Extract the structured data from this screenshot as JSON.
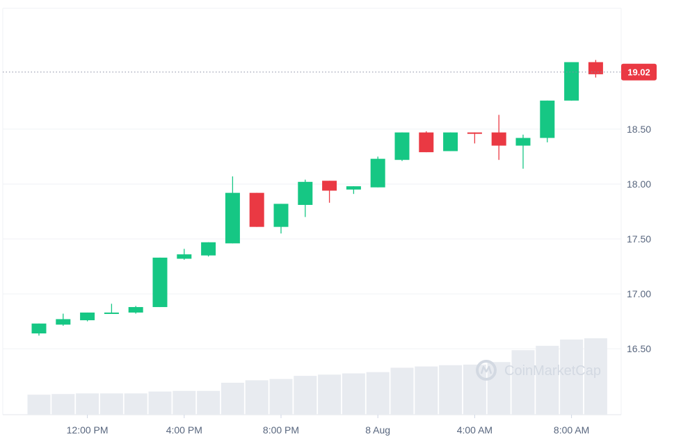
{
  "chart_data": {
    "type": "candlestick",
    "title": "",
    "xlabel": "",
    "ylabel": "",
    "ylim": [
      15.9,
      19.6
    ],
    "y_ticks": [
      16.5,
      17.0,
      17.5,
      18.0,
      18.5
    ],
    "y_tick_labels": [
      "16.50",
      "17.00",
      "17.50",
      "18.00",
      "18.50"
    ],
    "x_tick_labels": [
      "12:00 PM",
      "4:00 PM",
      "8:00 PM",
      "8 Aug",
      "4:00 AM",
      "8:00 AM"
    ],
    "x_tick_candle_index": [
      2,
      6,
      10,
      14,
      18,
      22
    ],
    "grid": true,
    "current_price": 19.02,
    "current_price_label": "19.02",
    "up_color": "#16c784",
    "down_color": "#ea3943",
    "volume_color": "#e8ebf0",
    "candles": [
      {
        "open": 16.64,
        "high": 16.73,
        "low": 16.62,
        "close": 16.73
      },
      {
        "open": 16.72,
        "high": 16.82,
        "low": 16.71,
        "close": 16.77
      },
      {
        "open": 16.76,
        "high": 16.83,
        "low": 16.75,
        "close": 16.83
      },
      {
        "open": 16.82,
        "high": 16.91,
        "low": 16.82,
        "close": 16.83
      },
      {
        "open": 16.83,
        "high": 16.89,
        "low": 16.82,
        "close": 16.88
      },
      {
        "open": 16.88,
        "high": 17.33,
        "low": 16.88,
        "close": 17.33
      },
      {
        "open": 17.32,
        "high": 17.41,
        "low": 17.31,
        "close": 17.36
      },
      {
        "open": 17.35,
        "high": 17.47,
        "low": 17.34,
        "close": 17.47
      },
      {
        "open": 17.46,
        "high": 18.07,
        "low": 17.46,
        "close": 17.92
      },
      {
        "open": 17.92,
        "high": 17.92,
        "low": 17.61,
        "close": 17.61
      },
      {
        "open": 17.61,
        "high": 17.82,
        "low": 17.55,
        "close": 17.82
      },
      {
        "open": 17.81,
        "high": 18.04,
        "low": 17.7,
        "close": 18.02
      },
      {
        "open": 18.03,
        "high": 18.03,
        "low": 17.83,
        "close": 17.94
      },
      {
        "open": 17.95,
        "high": 17.98,
        "low": 17.91,
        "close": 17.98
      },
      {
        "open": 17.97,
        "high": 18.25,
        "low": 17.97,
        "close": 18.23
      },
      {
        "open": 18.22,
        "high": 18.47,
        "low": 18.21,
        "close": 18.47
      },
      {
        "open": 18.47,
        "high": 18.48,
        "low": 18.29,
        "close": 18.29
      },
      {
        "open": 18.3,
        "high": 18.47,
        "low": 18.3,
        "close": 18.47
      },
      {
        "open": 18.47,
        "high": 18.47,
        "low": 18.37,
        "close": 18.46
      },
      {
        "open": 18.47,
        "high": 18.63,
        "low": 18.22,
        "close": 18.35
      },
      {
        "open": 18.35,
        "high": 18.45,
        "low": 18.14,
        "close": 18.42
      },
      {
        "open": 18.42,
        "high": 18.76,
        "low": 18.38,
        "close": 18.76
      },
      {
        "open": 18.76,
        "high": 19.11,
        "low": 18.76,
        "close": 19.11
      },
      {
        "open": 19.11,
        "high": 19.13,
        "low": 18.97,
        "close": 19.0
      }
    ],
    "volume_relative": [
      0.32,
      0.33,
      0.34,
      0.34,
      0.34,
      0.37,
      0.38,
      0.38,
      0.51,
      0.55,
      0.57,
      0.62,
      0.64,
      0.66,
      0.68,
      0.75,
      0.77,
      0.79,
      0.8,
      0.84,
      1.03,
      1.1,
      1.2,
      1.22
    ]
  },
  "watermark": {
    "text": "CoinMarketCap",
    "icon": "coinmarketcap-logo-icon"
  }
}
